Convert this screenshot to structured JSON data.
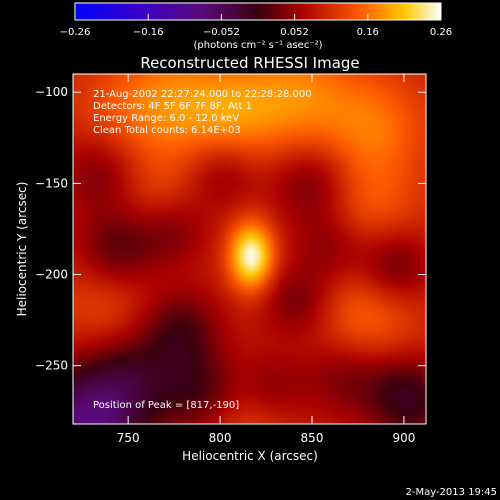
{
  "chart_data": {
    "type": "heatmap",
    "title": "Reconstructed RHESSI Image",
    "xlabel": "Heliocentric X (arcsec)",
    "ylabel": "Heliocentric Y (arcsec)",
    "xlim": [
      720,
      912
    ],
    "ylim": [
      -282,
      -90
    ],
    "x_ticks": [
      750,
      800,
      850,
      900
    ],
    "y_ticks": [
      -100,
      -150,
      -200,
      -250
    ],
    "colorbar": {
      "range": [
        -0.26,
        0.26
      ],
      "ticks": [
        "-0.26",
        "-0.16",
        "-0.052",
        "0.052",
        "0.16",
        "0.26"
      ],
      "label": "(photons cm⁻² s⁻¹ asec⁻²)"
    },
    "info_lines": [
      "21-Aug-2002 22:27:24.000 to 22:28:28.000",
      "Detectors: 4F 5F 6F 7F 8F, Att 1",
      "Energy Range: 6.0 - 12.0 keV",
      "Clean     Total counts: 6.14E+03"
    ],
    "peak_label": "Position of Peak = [817,-190]",
    "peak": {
      "x": 817,
      "y": -190,
      "value": 0.26
    },
    "background_level": 0.09,
    "noise_blobs": [
      [
        745,
        -110,
        0.03,
        20
      ],
      [
        775,
        -105,
        0.07,
        22
      ],
      [
        805,
        -112,
        0.05,
        18
      ],
      [
        840,
        -103,
        0.08,
        24
      ],
      [
        885,
        -118,
        0.06,
        20
      ],
      [
        735,
        -145,
        -0.06,
        16
      ],
      [
        765,
        -158,
        0.04,
        20
      ],
      [
        800,
        -145,
        -0.05,
        14
      ],
      [
        850,
        -150,
        -0.07,
        16
      ],
      [
        880,
        -160,
        0.05,
        20
      ],
      [
        745,
        -185,
        -0.08,
        16
      ],
      [
        775,
        -175,
        -0.06,
        14
      ],
      [
        860,
        -185,
        -0.05,
        14
      ],
      [
        895,
        -195,
        -0.07,
        14
      ],
      [
        738,
        -220,
        0.04,
        20
      ],
      [
        778,
        -230,
        -0.08,
        16
      ],
      [
        842,
        -215,
        -0.06,
        14
      ],
      [
        878,
        -225,
        0.06,
        20
      ],
      [
        750,
        -255,
        -0.07,
        18
      ],
      [
        790,
        -265,
        -0.08,
        16
      ],
      [
        828,
        -262,
        -0.05,
        14
      ],
      [
        868,
        -255,
        -0.06,
        16
      ],
      [
        900,
        -262,
        -0.05,
        14
      ],
      [
        728,
        -280,
        -0.1,
        22
      ],
      [
        812,
        -278,
        0.04,
        18
      ],
      [
        905,
        -275,
        -0.06,
        18
      ],
      [
        720,
        -300,
        -0.08,
        30
      ]
    ],
    "footer_date": "2-May-2013 19:45"
  }
}
